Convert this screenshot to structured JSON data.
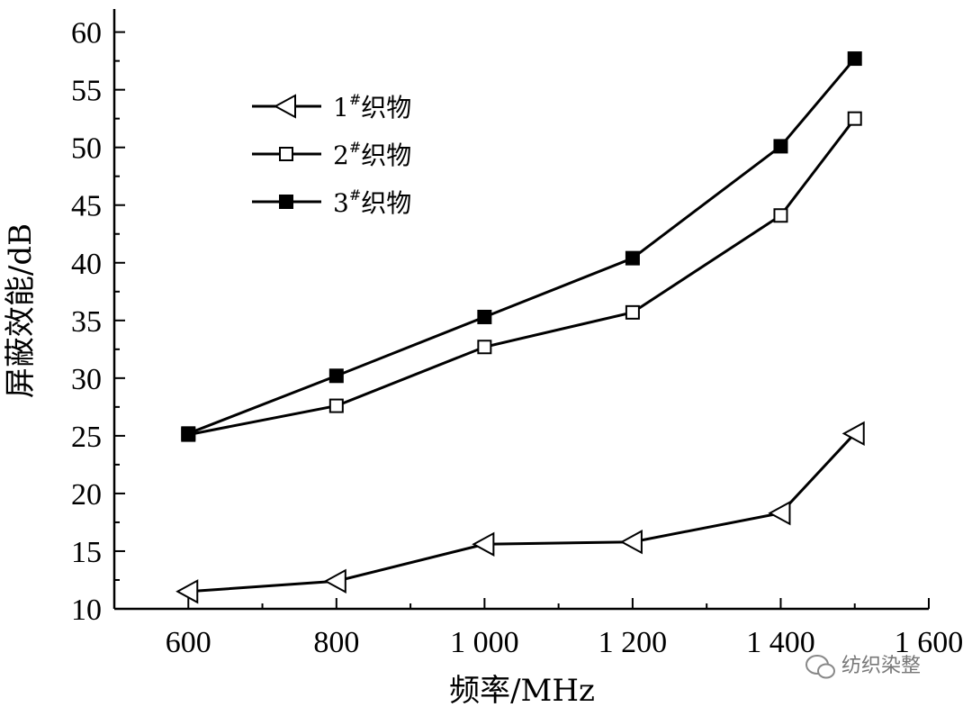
{
  "chart_data": {
    "type": "line",
    "title": "",
    "xlabel": "频率/MHz",
    "ylabel": "屏蔽效能/dB",
    "xlim": [
      500,
      1600
    ],
    "ylim": [
      10,
      62
    ],
    "xticks": [
      600,
      800,
      1000,
      1200,
      1400,
      1600
    ],
    "xtick_labels": [
      "600",
      "800",
      "1 000",
      "1 200",
      "1 400",
      "1 600"
    ],
    "yticks": [
      10,
      15,
      20,
      25,
      30,
      35,
      40,
      45,
      50,
      55,
      60
    ],
    "ytick_labels": [
      "10",
      "15",
      "20",
      "25",
      "30",
      "35",
      "40",
      "45",
      "50",
      "55",
      "60"
    ],
    "grid": false,
    "legend_position": "top-left",
    "x": [
      600,
      800,
      1000,
      1200,
      1400,
      1500
    ],
    "series": [
      {
        "name": "1#织物",
        "name_main": "1",
        "name_sup": "#",
        "name_rest": "织物",
        "marker": "triangle-left-open",
        "values": [
          11.5,
          12.4,
          15.6,
          15.8,
          18.3,
          25.2
        ]
      },
      {
        "name": "2#织物",
        "name_main": "2",
        "name_sup": "#",
        "name_rest": "织物",
        "marker": "square-open",
        "values": [
          25.1,
          27.6,
          32.7,
          35.7,
          44.1,
          52.5
        ]
      },
      {
        "name": "3#织物",
        "name_main": "3",
        "name_sup": "#",
        "name_rest": "织物",
        "marker": "square-filled",
        "values": [
          25.2,
          30.2,
          35.3,
          40.4,
          50.1,
          57.7
        ]
      }
    ],
    "color": "#000000"
  },
  "watermark": {
    "text": "纺织染整",
    "icon": "wechat-icon"
  }
}
